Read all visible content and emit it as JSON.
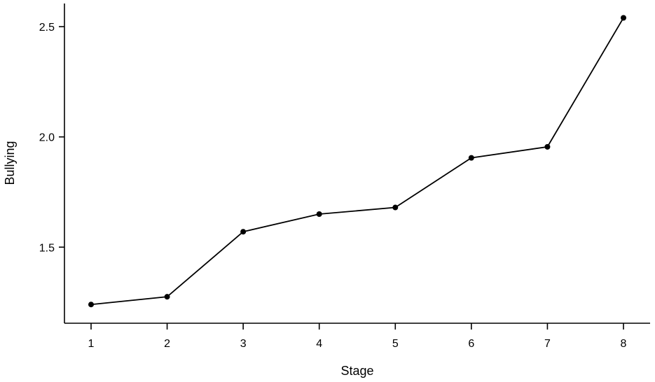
{
  "chart_data": {
    "type": "line",
    "title": "",
    "xlabel": "Stage",
    "ylabel": "Bullying",
    "x": [
      1,
      2,
      3,
      4,
      5,
      6,
      7,
      8
    ],
    "x_ticks": [
      "1",
      "2",
      "3",
      "4",
      "5",
      "6",
      "7",
      "8"
    ],
    "y_ticks": [
      "1.5",
      "2.0",
      "2.5"
    ],
    "y_tick_values": [
      1.5,
      2.0,
      2.5
    ],
    "ylim": [
      1.155,
      2.605
    ],
    "xlim": [
      0.65,
      8.35
    ],
    "grid": false,
    "legend": "none",
    "series": [
      {
        "values": [
          1.24,
          1.275,
          1.57,
          1.65,
          1.68,
          1.905,
          1.955,
          2.54
        ],
        "color": "#000000",
        "marker": "filled-circle"
      }
    ]
  }
}
